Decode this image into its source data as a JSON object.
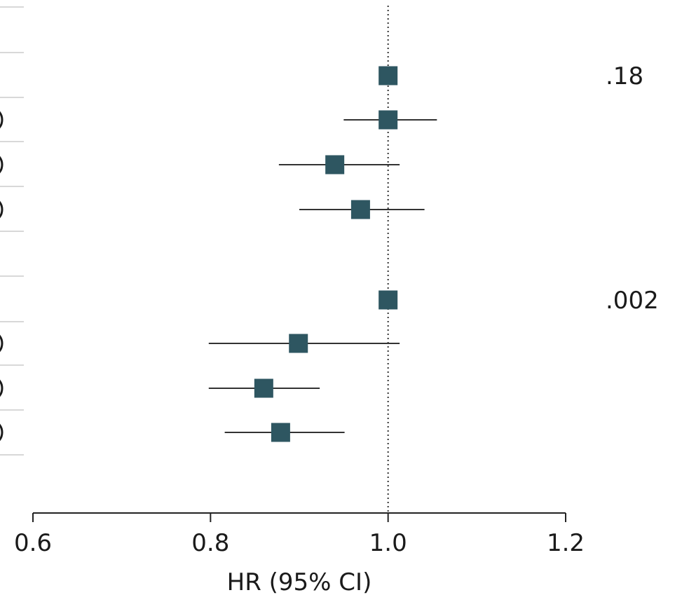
{
  "chart_data": {
    "type": "scatter",
    "subtype": "forest-plot",
    "xlabel": "HR (95% CI)",
    "xlim": [
      0.6,
      1.2
    ],
    "x_ticks": [
      "0.6",
      "0.8",
      "1.0",
      "1.2"
    ],
    "reference_line": 1.0,
    "reference_line_style": "dotted",
    "marker_color": "#2e5661",
    "groups": [
      {
        "p_value": ".18",
        "rows": [
          {
            "hr": 1.0,
            "ci_low": null,
            "ci_high": null
          },
          {
            "hr": 1.0,
            "ci_low": 0.95,
            "ci_high": 1.055
          },
          {
            "hr": 0.94,
            "ci_low": 0.877,
            "ci_high": 1.013
          },
          {
            "hr": 0.969,
            "ci_low": 0.9,
            "ci_high": 1.041
          }
        ]
      },
      {
        "p_value": ".002",
        "rows": [
          {
            "hr": 1.0,
            "ci_low": null,
            "ci_high": null
          },
          {
            "hr": 0.899,
            "ci_low": 0.798,
            "ci_high": 1.013
          },
          {
            "hr": 0.86,
            "ci_low": 0.798,
            "ci_high": 0.923
          },
          {
            "hr": 0.879,
            "ci_low": 0.816,
            "ci_high": 0.951
          }
        ]
      }
    ]
  }
}
